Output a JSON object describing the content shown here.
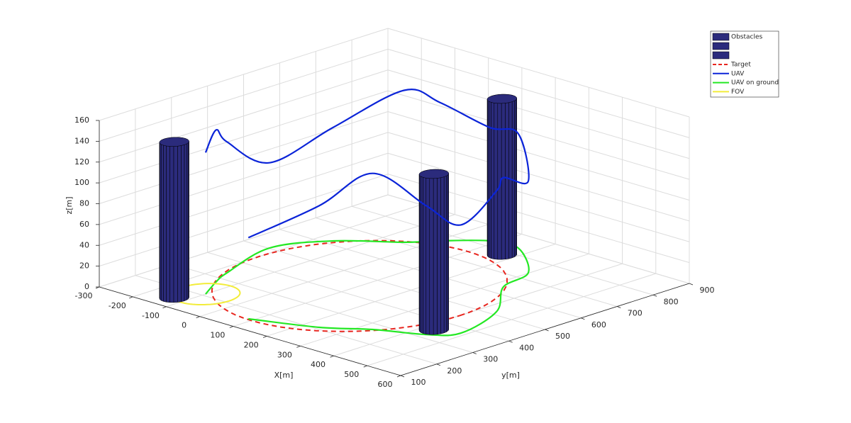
{
  "chart_data": {
    "type": "line3d",
    "xlabel": "X[m]",
    "ylabel": "y[m]",
    "zlabel": "z[m]",
    "xlim": [
      -300,
      600
    ],
    "ylim": [
      100,
      900
    ],
    "zlim": [
      0,
      160
    ],
    "xticks": [
      -300,
      -200,
      -100,
      0,
      100,
      200,
      300,
      400,
      500,
      600
    ],
    "yticks": [
      100,
      200,
      300,
      400,
      500,
      600,
      700,
      800,
      900
    ],
    "zticks": [
      0,
      20,
      40,
      60,
      80,
      100,
      120,
      140,
      160
    ],
    "grid": true,
    "legend": "upper right",
    "obstacles": {
      "name": "Obstacles",
      "color": "#2b2b7c",
      "cylinders": [
        {
          "x": -130,
          "y": 150,
          "radius": 30,
          "height": 150
        },
        {
          "x": 430,
          "y": 350,
          "radius": 30,
          "height": 150
        },
        {
          "x": 170,
          "y": 780,
          "radius": 30,
          "height": 150
        }
      ]
    },
    "series": [
      {
        "name": "Target",
        "color": "#e8261f",
        "style": "dashed",
        "center": [
          100,
          450
        ],
        "radius": 300
      },
      {
        "name": "UAV",
        "color": "#0b24d8",
        "x": [
          87,
          239,
          332,
          439,
          487,
          438,
          328,
          298,
          161,
          82,
          5,
          -44,
          -161,
          -225,
          -170,
          -143,
          -100
        ],
        "y": [
          154,
          210,
          271,
          319,
          372,
          516,
          637,
          734,
          833,
          827,
          761,
          707,
          619,
          502,
          333,
          278,
          209
        ],
        "z": [
          78,
          117,
          150,
          124,
          104,
          116,
          105,
          88,
          110,
          109,
          133,
          146,
          109,
          82,
          126,
          146,
          136
        ]
      },
      {
        "name": "UAV on ground",
        "color": "#24e824",
        "x": [
          87,
          239,
          332,
          439,
          487,
          438,
          328,
          298,
          161,
          82,
          5,
          -44,
          -161,
          -225,
          -170,
          -143,
          -100
        ],
        "y": [
          154,
          210,
          271,
          319,
          372,
          516,
          637,
          734,
          833,
          827,
          761,
          707,
          619,
          502,
          333,
          278,
          209
        ]
      },
      {
        "name": "FOV",
        "color": "#f2ec3a",
        "center": [
          -100,
          209
        ],
        "radius": 70
      }
    ]
  }
}
